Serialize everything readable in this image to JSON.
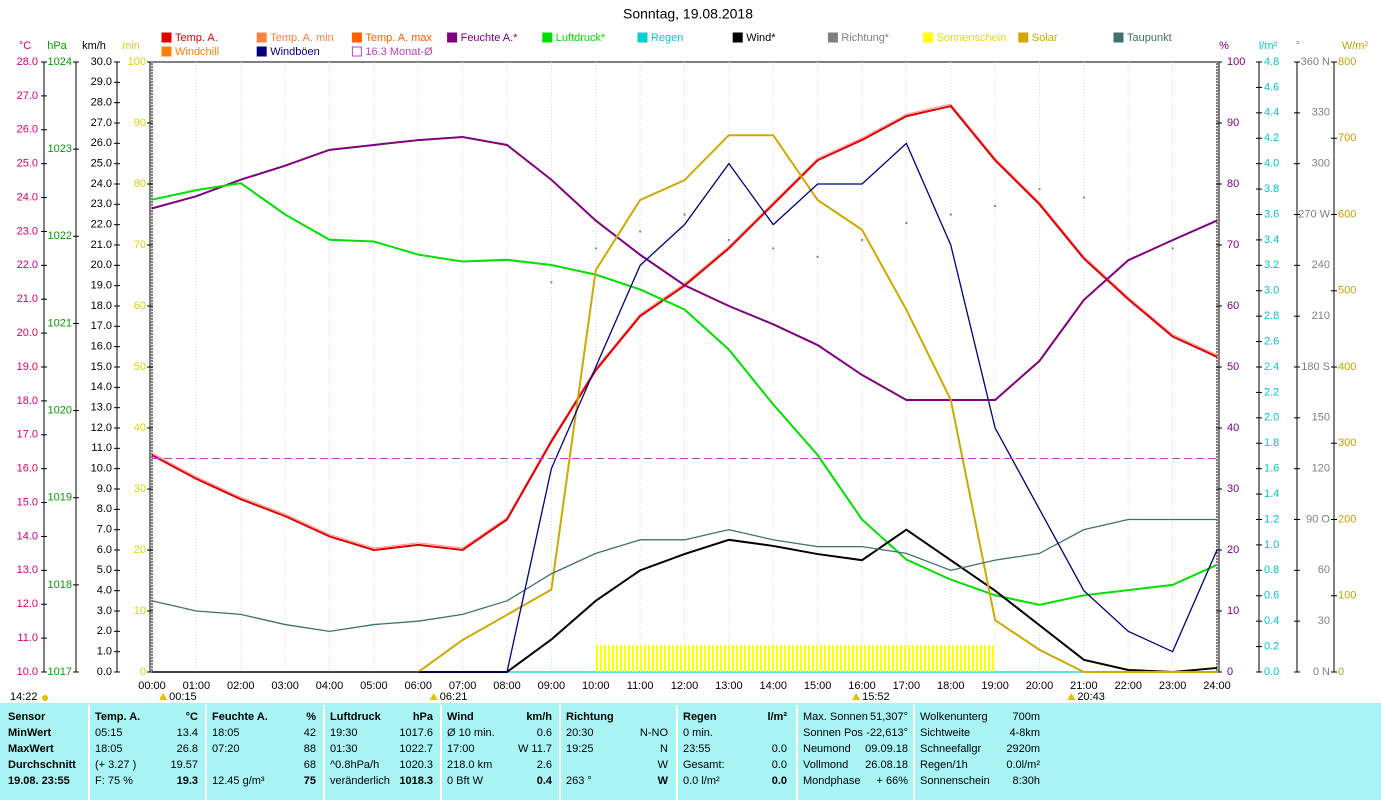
{
  "chart_data": {
    "type": "line",
    "title": "Sonntag, 19.08.2018",
    "x": [
      0,
      1,
      2,
      3,
      4,
      5,
      6,
      7,
      8,
      9,
      10,
      11,
      12,
      13,
      14,
      15,
      16,
      17,
      18,
      19,
      20,
      21,
      22,
      23,
      24
    ],
    "xlim": [
      0,
      24
    ],
    "xticks": [
      {
        "value": 0,
        "label": "00:00"
      },
      {
        "value": 1,
        "label": "01:00"
      },
      {
        "value": 2,
        "label": "02:00"
      },
      {
        "value": 3,
        "label": "03:00"
      },
      {
        "value": 4,
        "label": "04:00"
      },
      {
        "value": 5,
        "label": "05:00"
      },
      {
        "value": 6,
        "label": "06:00"
      },
      {
        "value": 7,
        "label": "07:00"
      },
      {
        "value": 8,
        "label": "08:00"
      },
      {
        "value": 9,
        "label": "09:00"
      },
      {
        "value": 10,
        "label": "10:00"
      },
      {
        "value": 11,
        "label": "11:00"
      },
      {
        "value": 12,
        "label": "12:00"
      },
      {
        "value": 13,
        "label": "13:00"
      },
      {
        "value": 14,
        "label": "14:00"
      },
      {
        "value": 15,
        "label": "15:00"
      },
      {
        "value": 16,
        "label": "16:00"
      },
      {
        "value": 17,
        "label": "17:00"
      },
      {
        "value": 18,
        "label": "18:00"
      },
      {
        "value": 19,
        "label": "19:00"
      },
      {
        "value": 20,
        "label": "20:00"
      },
      {
        "value": 21,
        "label": "21:00"
      },
      {
        "value": 22,
        "label": "22:00"
      },
      {
        "value": 23,
        "label": "23:00"
      },
      {
        "value": 24,
        "label": "24:00"
      }
    ],
    "grid": true,
    "axes": [
      {
        "unit": "°C",
        "color": "#e0006c",
        "lim": [
          10,
          28
        ],
        "ticks": [
          {
            "value": 10,
            "label": "10.0"
          },
          {
            "value": 11,
            "label": "11.0"
          },
          {
            "value": 12,
            "label": "12.0"
          },
          {
            "value": 13,
            "label": "13.0"
          },
          {
            "value": 14,
            "label": "14.0"
          },
          {
            "value": 15,
            "label": "15.0"
          },
          {
            "value": 16,
            "label": "16.0"
          },
          {
            "value": 17,
            "label": "17.0"
          },
          {
            "value": 18,
            "label": "18.0"
          },
          {
            "value": 19,
            "label": "19.0"
          },
          {
            "value": 20,
            "label": "20.0"
          },
          {
            "value": 21,
            "label": "21.0"
          },
          {
            "value": 22,
            "label": "22.0"
          },
          {
            "value": 23,
            "label": "23.0"
          },
          {
            "value": 24,
            "label": "24.0"
          },
          {
            "value": 25,
            "label": "25.0"
          },
          {
            "value": 26,
            "label": "26.0"
          },
          {
            "value": 27,
            "label": "27.0"
          },
          {
            "value": 28,
            "label": "28.0"
          }
        ]
      },
      {
        "unit": "hPa",
        "color": "#00a000",
        "lim": [
          1017,
          1024
        ],
        "ticks": [
          1017,
          1018,
          1019,
          1020,
          1021,
          1022,
          1023,
          1024
        ]
      },
      {
        "unit": "km/h",
        "color": "#000000",
        "lim": [
          0,
          30
        ],
        "ticks": [
          {
            "value": 0,
            "label": "0.0"
          },
          {
            "value": 1,
            "label": "1.0"
          },
          {
            "value": 2,
            "label": "2.0"
          },
          {
            "value": 3,
            "label": "3.0"
          },
          {
            "value": 4,
            "label": "4.0"
          },
          {
            "value": 5,
            "label": "5.0"
          },
          {
            "value": 6,
            "label": "6.0"
          },
          {
            "value": 7,
            "label": "7.0"
          },
          {
            "value": 8,
            "label": "8.0"
          },
          {
            "value": 9,
            "label": "9.0"
          },
          {
            "value": 10,
            "label": "10.0"
          },
          {
            "value": 11,
            "label": "11.0"
          },
          {
            "value": 12,
            "label": "12.0"
          },
          {
            "value": 13,
            "label": "13.0"
          },
          {
            "value": 14,
            "label": "14.0"
          },
          {
            "value": 15,
            "label": "15.0"
          },
          {
            "value": 16,
            "label": "16.0"
          },
          {
            "value": 17,
            "label": "17.0"
          },
          {
            "value": 18,
            "label": "18.0"
          },
          {
            "value": 19,
            "label": "19.0"
          },
          {
            "value": 20,
            "label": "20.0"
          },
          {
            "value": 21,
            "label": "21.0"
          },
          {
            "value": 22,
            "label": "22.0"
          },
          {
            "value": 23,
            "label": "23.0"
          },
          {
            "value": 24,
            "label": "24.0"
          },
          {
            "value": 25,
            "label": "25.0"
          },
          {
            "value": 26,
            "label": "26.0"
          },
          {
            "value": 27,
            "label": "27.0"
          },
          {
            "value": 28,
            "label": "28.0"
          },
          {
            "value": 29,
            "label": "29.0"
          },
          {
            "value": 30,
            "label": "30.0"
          }
        ]
      },
      {
        "unit": "min",
        "color": "#e0d000",
        "lim": [
          0,
          100
        ],
        "ticks": [
          0,
          10,
          20,
          30,
          40,
          50,
          60,
          70,
          80,
          90,
          100
        ]
      },
      {
        "unit": "%",
        "color": "#800080",
        "lim": [
          0,
          100
        ],
        "ticks": [
          0,
          10,
          20,
          30,
          40,
          50,
          60,
          70,
          80,
          90,
          100
        ]
      },
      {
        "unit": "l/m²",
        "color": "#00c8c8",
        "lim": [
          0,
          4.8
        ],
        "ticks": [
          {
            "value": 0,
            "label": "0.0"
          },
          0.2,
          0.4,
          0.6,
          0.8,
          {
            "value": 1,
            "label": "1.0"
          },
          1.2,
          1.4,
          1.6,
          1.8,
          {
            "value": 2,
            "label": "2.0"
          },
          2.2,
          2.4,
          2.6,
          2.8,
          {
            "value": 3,
            "label": "3.0"
          },
          3.2,
          3.4,
          3.6,
          3.8,
          {
            "value": 4,
            "label": "4.0"
          },
          4.2,
          4.4,
          4.6,
          4.8
        ]
      },
      {
        "unit": "°",
        "color": "#808080",
        "lim": [
          0,
          360
        ],
        "ticks": [
          {
            "value": 0,
            "label": "0 N"
          },
          30,
          60,
          {
            "value": 90,
            "label": "90 O"
          },
          120,
          150,
          {
            "value": 180,
            "label": "180 S"
          },
          210,
          240,
          {
            "value": 270,
            "label": "270 W"
          },
          300,
          330,
          {
            "value": 360,
            "label": "360 N"
          }
        ]
      },
      {
        "unit": "W/m²",
        "color": "#c8a000",
        "lim": [
          0,
          800
        ],
        "ticks": [
          0,
          100,
          200,
          300,
          400,
          500,
          600,
          700,
          800
        ]
      }
    ],
    "series": [
      {
        "name": "Temp. A.",
        "color": "#e00000",
        "axis": "°C",
        "style": "line",
        "values": [
          16.4,
          15.7,
          15.1,
          14.6,
          14.0,
          13.6,
          13.75,
          13.6,
          14.5,
          16.8,
          18.9,
          20.5,
          21.4,
          22.5,
          23.8,
          25.1,
          25.7,
          26.4,
          26.7,
          25.1,
          23.8,
          22.2,
          21.0,
          19.9,
          19.3
        ]
      },
      {
        "name": "Temp. A. min",
        "color": "#ff8040"
      },
      {
        "name": "Temp. A. max",
        "color": "#ff6000"
      },
      {
        "name": "Feuchte A.*",
        "color": "#800080",
        "axis": "%",
        "style": "line",
        "values": [
          76,
          78,
          80.7,
          83,
          85.6,
          86.4,
          87.2,
          87.7,
          86.4,
          80.7,
          74,
          68.4,
          63.4,
          60,
          57,
          53.6,
          48.7,
          44.6,
          44.6,
          44.6,
          51,
          61,
          67.5,
          70.8,
          74
        ]
      },
      {
        "name": "Luftdruck*",
        "color": "#00e000",
        "axis": "hPa",
        "style": "line",
        "values": [
          1022.42,
          1022.53,
          1022.61,
          1022.25,
          1021.96,
          1021.94,
          1021.79,
          1021.71,
          1021.73,
          1021.67,
          1021.56,
          1021.39,
          1021.16,
          1020.7,
          1020.07,
          1019.49,
          1018.75,
          1018.29,
          1018.06,
          1017.88,
          1017.77,
          1017.88,
          1017.94,
          1018.0,
          1018.23
        ]
      },
      {
        "name": "Regen",
        "color": "#00d0d0",
        "axis": "l/m²",
        "style": "line",
        "values": [
          0,
          0,
          0,
          0,
          0,
          0,
          0,
          0,
          0,
          0,
          0,
          0,
          0,
          0,
          0,
          0,
          0,
          0,
          0,
          0,
          0,
          0,
          0,
          0,
          0
        ]
      },
      {
        "name": "Wind*",
        "color": "#000000",
        "axis": "km/h",
        "style": "line",
        "values": [
          0,
          0,
          0,
          0,
          0,
          0,
          0,
          0,
          0,
          1.6,
          3.5,
          5.0,
          5.8,
          6.5,
          6.2,
          5.8,
          5.5,
          7.0,
          5.5,
          4.0,
          2.3,
          0.6,
          0.1,
          0,
          0.2
        ]
      },
      {
        "name": "Richtung*",
        "color": "#808080",
        "axis": "°",
        "style": "dots",
        "values": [
          null,
          null,
          null,
          null,
          null,
          null,
          null,
          null,
          null,
          230,
          250,
          260,
          270,
          255,
          250,
          245,
          255,
          265,
          270,
          275,
          285,
          280,
          null,
          250,
          null
        ]
      },
      {
        "name": "Sonnenschein",
        "color": "#ffff00",
        "axis": "min",
        "style": "bars",
        "values": [
          0,
          0,
          0,
          0,
          0,
          0,
          0,
          0,
          0,
          0,
          4.4,
          4.4,
          4.4,
          4.4,
          4.4,
          4.4,
          4.4,
          4.4,
          4.4,
          0,
          0,
          0,
          0,
          0,
          0
        ]
      },
      {
        "name": "Solar",
        "color": "#d0a800",
        "axis": "W/m²",
        "style": "line",
        "values": [
          0,
          0,
          0,
          0,
          0,
          0,
          0,
          42,
          75,
          108,
          527,
          619,
          645,
          704,
          704,
          619,
          580,
          475,
          357,
          68,
          29,
          0,
          0,
          0,
          0
        ]
      },
      {
        "name": "Taupunkt",
        "color": "#407070",
        "axis": "°C",
        "style": "line",
        "values": [
          12.1,
          11.8,
          11.7,
          11.4,
          11.2,
          11.4,
          11.5,
          11.7,
          12.1,
          12.9,
          13.5,
          13.9,
          13.9,
          14.2,
          13.9,
          13.7,
          13.7,
          13.5,
          13.0,
          13.3,
          13.5,
          14.2,
          14.5,
          14.5,
          14.5
        ]
      },
      {
        "name": "Windchill",
        "color": "#ff8000"
      },
      {
        "name": "Windböen",
        "color": "#000080",
        "axis": "km/h",
        "style": "line",
        "values": [
          0,
          0,
          0,
          0,
          0,
          0,
          0,
          0,
          0,
          10,
          15,
          20,
          22,
          25,
          22,
          24,
          24,
          26,
          21,
          12,
          8,
          4,
          2,
          1,
          6
        ]
      },
      {
        "name": "16.3 Monat-Ø",
        "color": "#c040c0",
        "axis": "°C",
        "style": "hline",
        "value": 16.3
      }
    ],
    "markers": [
      {
        "value": 0.25,
        "label": "00:15"
      },
      {
        "value": 6.35,
        "label": "06:21"
      },
      {
        "value": 15.867,
        "label": "15:52"
      },
      {
        "value": 20.717,
        "label": "20:43"
      }
    ],
    "note": "14:22"
  },
  "table": {
    "columns": [
      [
        [
          "Sensor"
        ],
        [
          "MinWert"
        ],
        [
          "MaxWert"
        ],
        [
          "Durchschnitt"
        ],
        [
          "19.08. 23:55"
        ]
      ],
      [
        [
          "Temp. A.",
          "°C"
        ],
        [
          "05:15",
          "13.4"
        ],
        [
          "18:05",
          "26.8"
        ],
        [
          "(+ 3.27 )",
          "19.57"
        ],
        [
          "F: 75 %",
          "19.3"
        ]
      ],
      [
        [
          "Feuchte A.",
          "%"
        ],
        [
          "18:05",
          "42"
        ],
        [
          "07:20",
          "88"
        ],
        [
          null,
          "68"
        ],
        [
          "12.45 g/m³",
          "75"
        ]
      ],
      [
        [
          "Luftdruck",
          "hPa"
        ],
        [
          "19:30",
          "1017.6"
        ],
        [
          "01:30",
          "1022.7"
        ],
        [
          "^0.8hPa/h",
          "1020.3"
        ],
        [
          "veränderlich",
          "1018.3"
        ]
      ],
      [
        [
          "Wind",
          "km/h"
        ],
        [
          "Ø 10 min.",
          "0.6"
        ],
        [
          "17:00",
          "W 11.7"
        ],
        [
          "218.0 km",
          "2.6"
        ],
        [
          "0 Bft W",
          "0.4"
        ]
      ],
      [
        [
          "Richtung"
        ],
        [
          "20:30",
          "N-NO"
        ],
        [
          "19:25",
          "N"
        ],
        [
          null,
          "W"
        ],
        [
          "263 °",
          "W"
        ]
      ],
      [
        [
          "Regen",
          "l/m²"
        ],
        [
          "0 min."
        ],
        [
          "23:55",
          "0.0"
        ],
        [
          "Gesamt:",
          "0.0"
        ],
        [
          "0.0 l/m²",
          "0.0"
        ]
      ],
      [
        [
          "Max. Sonnen",
          "51,307°"
        ],
        [
          "Sonnen Pos",
          "-22,613°"
        ],
        [
          "Neumond",
          "09.09.18"
        ],
        [
          "Vollmond",
          "26.08.18"
        ],
        [
          "Mondphase",
          "+ 66%"
        ]
      ],
      [
        [
          "Wolkenunterg",
          "700m"
        ],
        [
          "Sichtweite",
          "4-8km"
        ],
        [
          "Schneefallgr",
          "2920m"
        ],
        [
          "Regen/1h",
          "0.0l/m²"
        ],
        [
          "Sonnenschein",
          "8:30h"
        ]
      ]
    ]
  }
}
